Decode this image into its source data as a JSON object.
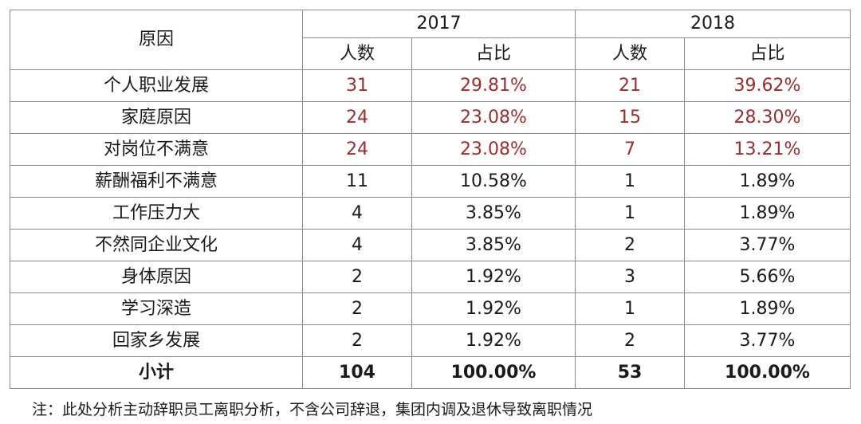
{
  "chart_data": {
    "type": "table",
    "header": {
      "reason": "原因",
      "years": [
        "2017",
        "2018"
      ],
      "count_label": "人数",
      "pct_label": "占比"
    },
    "rows": [
      {
        "reason": "个人职业发展",
        "c2017": "31",
        "p2017": "29.81%",
        "c2018": "21",
        "p2018": "39.62%",
        "highlight": true
      },
      {
        "reason": "家庭原因",
        "c2017": "24",
        "p2017": "23.08%",
        "c2018": "15",
        "p2018": "28.30%",
        "highlight": true
      },
      {
        "reason": "对岗位不满意",
        "c2017": "24",
        "p2017": "23.08%",
        "c2018": "7",
        "p2018": "13.21%",
        "highlight": true
      },
      {
        "reason": "薪酬福利不满意",
        "c2017": "11",
        "p2017": "10.58%",
        "c2018": "1",
        "p2018": "1.89%",
        "highlight": false
      },
      {
        "reason": "工作压力大",
        "c2017": "4",
        "p2017": "3.85%",
        "c2018": "1",
        "p2018": "1.89%",
        "highlight": false
      },
      {
        "reason": "不然同企业文化",
        "c2017": "4",
        "p2017": "3.85%",
        "c2018": "2",
        "p2018": "3.77%",
        "highlight": false
      },
      {
        "reason": "身体原因",
        "c2017": "2",
        "p2017": "1.92%",
        "c2018": "3",
        "p2018": "5.66%",
        "highlight": false
      },
      {
        "reason": "学习深造",
        "c2017": "2",
        "p2017": "1.92%",
        "c2018": "1",
        "p2018": "1.89%",
        "highlight": false
      },
      {
        "reason": "回家乡发展",
        "c2017": "2",
        "p2017": "1.92%",
        "c2018": "2",
        "p2018": "3.77%",
        "highlight": false
      }
    ],
    "total": {
      "reason": "小计",
      "c2017": "104",
      "p2017": "100.00%",
      "c2018": "53",
      "p2018": "100.00%"
    },
    "note": "注：此处分析主动辞职员工离职分析，不含公司辞退，集团内调及退休导致离职情况",
    "colors": {
      "highlight": "#9b2d2d",
      "text": "#1a1a1a",
      "border": "#8a8a8a"
    }
  }
}
